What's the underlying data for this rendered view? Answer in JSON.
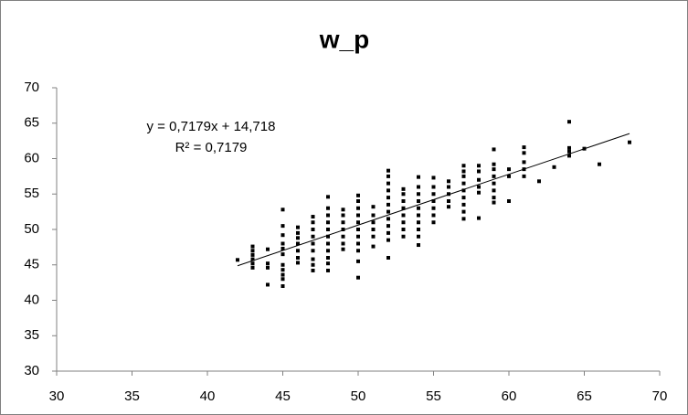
{
  "chart_data": {
    "type": "scatter",
    "title": "w_p",
    "series": [
      {
        "color": "#000000",
        "x": [
          42,
          43,
          43,
          43,
          43,
          43,
          43,
          44,
          44,
          44,
          44,
          45,
          45,
          45,
          45,
          45,
          45,
          45,
          45,
          45,
          45,
          45,
          46,
          46,
          46,
          46,
          46,
          46,
          46,
          47,
          47,
          47,
          47,
          47,
          47,
          47,
          47,
          47,
          48,
          48,
          48,
          48,
          48,
          48,
          48,
          48,
          48,
          48,
          48,
          49,
          49,
          49,
          49,
          49,
          49,
          49,
          50,
          50,
          50,
          50,
          50,
          50,
          50,
          50,
          50,
          50,
          50,
          51,
          51,
          51,
          51,
          51,
          51,
          52,
          52,
          52,
          52,
          52,
          52,
          52,
          52,
          52,
          52,
          52,
          52,
          53,
          53,
          53,
          53,
          53,
          53,
          53,
          53,
          54,
          54,
          54,
          54,
          54,
          54,
          54,
          54,
          54,
          54,
          55,
          55,
          55,
          55,
          55,
          55,
          55,
          56,
          56,
          56,
          56,
          56,
          57,
          57,
          57,
          57,
          57,
          57,
          57,
          57,
          57,
          58,
          58,
          58,
          58,
          58,
          58,
          59,
          59,
          59,
          59,
          59,
          59,
          59,
          59,
          60,
          60,
          60,
          61,
          61,
          61,
          61,
          61,
          62,
          63,
          64,
          64,
          64,
          64,
          65,
          66,
          68
        ],
        "values": [
          45.7,
          44.6,
          45.2,
          45.8,
          46.4,
          47.0,
          47.6,
          42.2,
          44.6,
          45.2,
          47.2,
          42.0,
          43.0,
          43.6,
          44.3,
          45.0,
          46.5,
          47.3,
          48.0,
          49.2,
          50.5,
          52.8,
          45.3,
          46.0,
          47.0,
          48.0,
          48.8,
          49.5,
          50.3,
          44.2,
          45.0,
          45.8,
          47.0,
          48.0,
          49.0,
          50.0,
          51.0,
          51.8,
          44.2,
          45.2,
          46.0,
          47.0,
          48.0,
          49.0,
          50.0,
          51.0,
          52.0,
          53.0,
          54.6,
          47.2,
          48.0,
          49.0,
          50.0,
          51.0,
          52.0,
          52.8,
          43.2,
          45.5,
          47.0,
          48.0,
          49.0,
          50.0,
          51.0,
          52.0,
          53.0,
          54.0,
          54.8,
          47.6,
          49.0,
          50.0,
          51.0,
          52.0,
          53.2,
          46.0,
          48.5,
          49.5,
          50.5,
          51.5,
          52.5,
          53.5,
          54.5,
          55.5,
          56.5,
          57.5,
          58.3,
          49.0,
          50.0,
          51.0,
          52.0,
          53.0,
          54.0,
          55.0,
          55.7,
          47.8,
          49.0,
          50.0,
          51.0,
          52.0,
          53.0,
          54.0,
          55.0,
          56.0,
          57.4,
          51.0,
          52.0,
          53.0,
          54.0,
          55.0,
          56.0,
          57.3,
          53.2,
          54.0,
          55.0,
          56.0,
          56.8,
          51.5,
          52.5,
          53.5,
          54.5,
          55.5,
          56.5,
          57.5,
          58.2,
          59.0,
          51.6,
          55.2,
          56.0,
          57.0,
          58.2,
          59.0,
          53.8,
          54.5,
          55.5,
          56.5,
          57.5,
          58.5,
          59.2,
          61.3,
          54.0,
          57.5,
          58.5,
          57.5,
          58.5,
          59.5,
          60.8,
          61.6,
          56.8,
          58.8,
          60.4,
          61.0,
          61.5,
          65.2,
          61.4,
          59.2,
          62.3
        ]
      }
    ],
    "trendline": {
      "equation": "y = 0,7179x + 14,718",
      "r2_label": "R² = 0,7179",
      "slope": 0.7179,
      "intercept": 14.718,
      "xrange": [
        42,
        68
      ],
      "color": "#000000"
    },
    "xlim": [
      30,
      70
    ],
    "xticks": [
      30,
      35,
      40,
      45,
      50,
      55,
      60,
      65,
      70
    ],
    "ylim": [
      30,
      70
    ],
    "yticks": [
      30,
      35,
      40,
      45,
      50,
      55,
      60,
      65,
      70
    ],
    "grid": false
  }
}
